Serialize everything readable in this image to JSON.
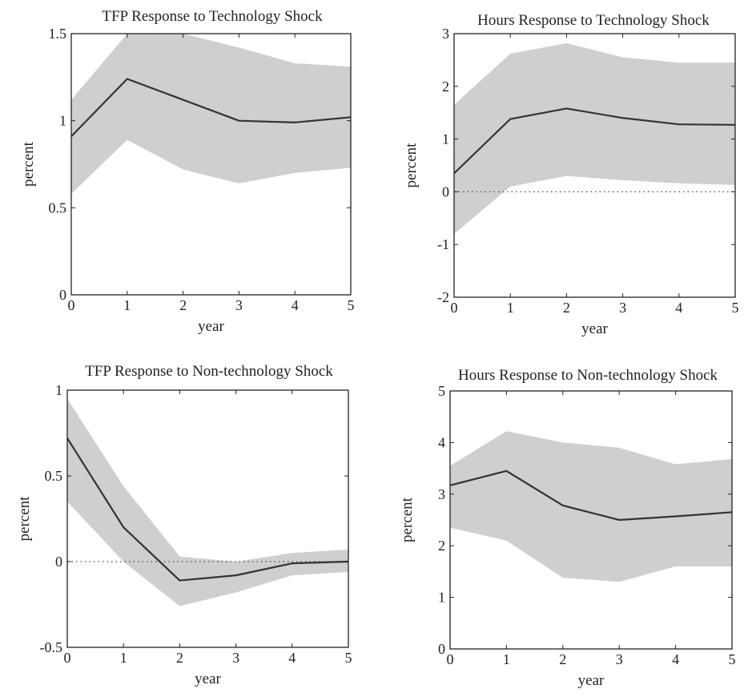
{
  "chart_data": [
    {
      "type": "line",
      "title": "TFP Response to Technology Shock",
      "xlabel": "year",
      "ylabel": "percent",
      "x": [
        0,
        1,
        2,
        3,
        4,
        5
      ],
      "xticks": [
        "0",
        "1",
        "2",
        "3",
        "4",
        "5"
      ],
      "yticks": [
        "0",
        "0.5",
        "1",
        "1.5"
      ],
      "xlim": [
        0,
        5
      ],
      "ylim": [
        0,
        1.5
      ],
      "zero_line": false,
      "series": [
        {
          "values": [
            0.91,
            1.24,
            1.12,
            1.0,
            0.99,
            1.02
          ]
        }
      ],
      "band": {
        "upper": [
          1.12,
          1.5,
          1.5,
          1.42,
          1.33,
          1.31
        ],
        "lower": [
          0.58,
          0.89,
          0.72,
          0.64,
          0.7,
          0.73
        ]
      }
    },
    {
      "type": "line",
      "title": "Hours Response to Technology Shock",
      "xlabel": "year",
      "ylabel": "percent",
      "x": [
        0,
        1,
        2,
        3,
        4,
        5
      ],
      "xticks": [
        "0",
        "1",
        "2",
        "3",
        "4",
        "5"
      ],
      "yticks": [
        "-2",
        "-1",
        "0",
        "1",
        "2",
        "3"
      ],
      "xlim": [
        0,
        5
      ],
      "ylim": [
        -2,
        3
      ],
      "zero_line": true,
      "series": [
        {
          "values": [
            0.35,
            1.38,
            1.58,
            1.4,
            1.28,
            1.27
          ]
        }
      ],
      "band": {
        "upper": [
          1.65,
          2.62,
          2.82,
          2.55,
          2.45,
          2.45
        ],
        "lower": [
          -0.8,
          0.1,
          0.3,
          0.22,
          0.16,
          0.13
        ]
      }
    },
    {
      "type": "line",
      "title": "TFP Response to Non-technology Shock",
      "xlabel": "year",
      "ylabel": "percent",
      "x": [
        0,
        1,
        2,
        3,
        4,
        5
      ],
      "xticks": [
        "0",
        "1",
        "2",
        "3",
        "4",
        "5"
      ],
      "yticks": [
        "-0.5",
        "0",
        "0.5",
        "1"
      ],
      "xlim": [
        0,
        5
      ],
      "ylim": [
        -0.5,
        1
      ],
      "zero_line": true,
      "series": [
        {
          "values": [
            0.72,
            0.2,
            -0.11,
            -0.08,
            -0.01,
            0.0
          ]
        }
      ],
      "band": {
        "upper": [
          0.95,
          0.44,
          0.03,
          0.0,
          0.05,
          0.07
        ],
        "lower": [
          0.35,
          0.0,
          -0.26,
          -0.18,
          -0.08,
          -0.06
        ]
      }
    },
    {
      "type": "line",
      "title": "Hours Response to Non-technology Shock",
      "xlabel": "year",
      "ylabel": "percent",
      "x": [
        0,
        1,
        2,
        3,
        4,
        5
      ],
      "xticks": [
        "0",
        "1",
        "2",
        "3",
        "4",
        "5"
      ],
      "yticks": [
        "0",
        "1",
        "2",
        "3",
        "4",
        "5"
      ],
      "xlim": [
        0,
        5
      ],
      "ylim": [
        0,
        5
      ],
      "zero_line": false,
      "series": [
        {
          "values": [
            3.17,
            3.45,
            2.78,
            2.5,
            2.57,
            2.65
          ]
        }
      ],
      "band": {
        "upper": [
          3.55,
          4.22,
          4.0,
          3.9,
          3.58,
          3.68
        ],
        "lower": [
          2.35,
          2.1,
          1.38,
          1.3,
          1.6,
          1.6
        ]
      }
    }
  ]
}
